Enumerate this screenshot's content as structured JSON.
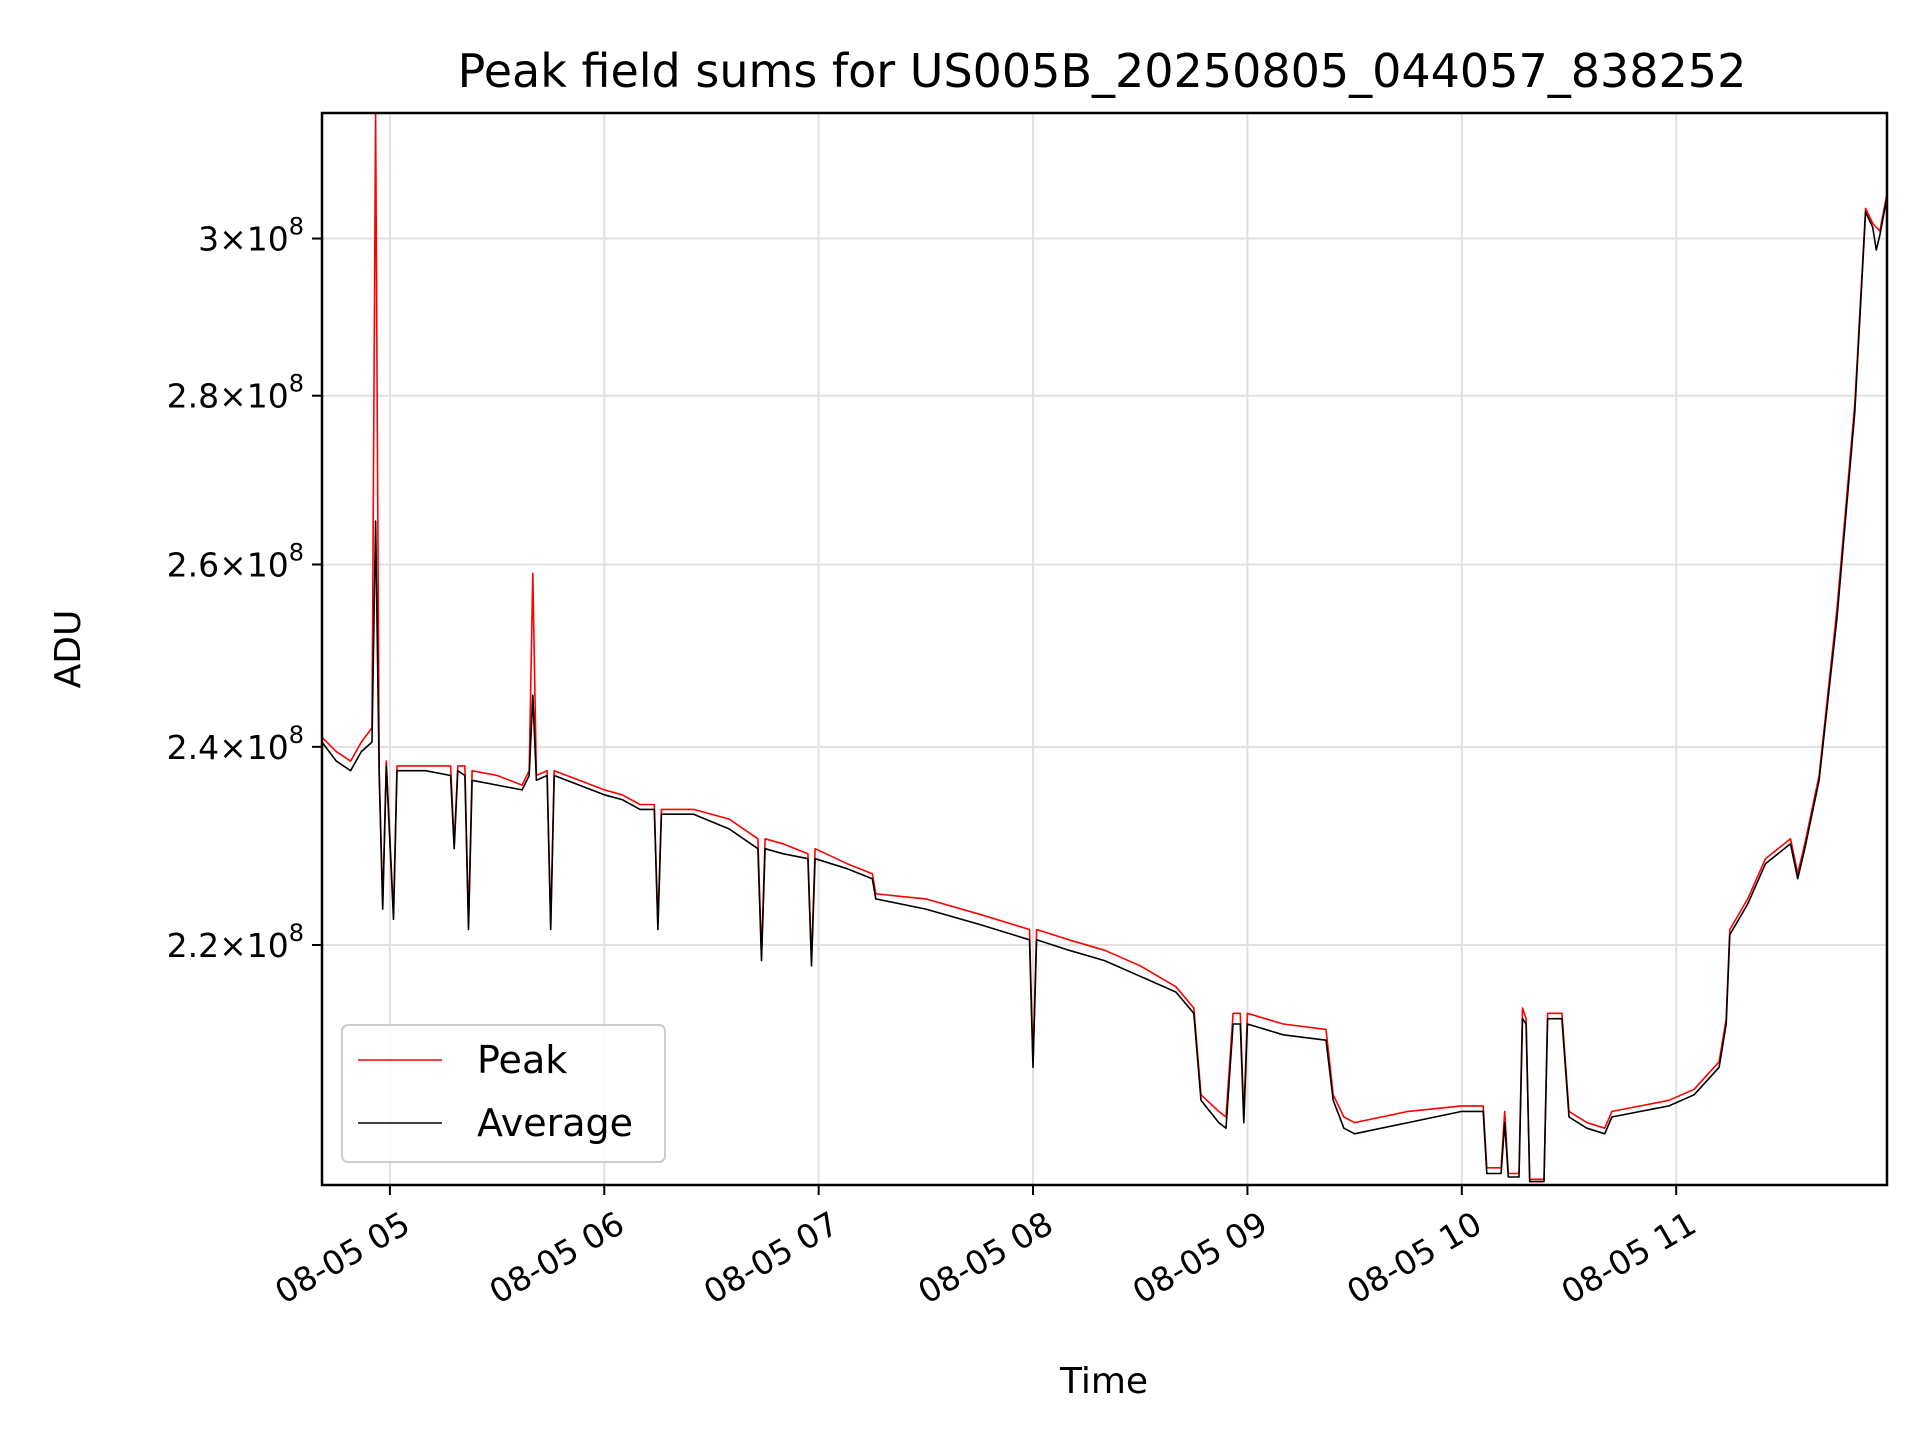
{
  "chart_data": {
    "type": "line",
    "title": "Peak field sums for US005B_20250805_044057_838252",
    "xlabel": "Time",
    "ylabel": "ADU",
    "y_scale": "log",
    "grid": true,
    "legend_position": "bottom-left",
    "xlim": [
      "2025-08-05 04:41",
      "2025-08-05 11:59"
    ],
    "ylim": [
      198000000,
      317000000
    ],
    "x_ticks": [
      {
        "value": "2025-08-05 05:00",
        "label": "08-05 05"
      },
      {
        "value": "2025-08-05 06:00",
        "label": "08-05 06"
      },
      {
        "value": "2025-08-05 07:00",
        "label": "08-05 07"
      },
      {
        "value": "2025-08-05 08:00",
        "label": "08-05 08"
      },
      {
        "value": "2025-08-05 09:00",
        "label": "08-05 09"
      },
      {
        "value": "2025-08-05 10:00",
        "label": "08-05 10"
      },
      {
        "value": "2025-08-05 11:00",
        "label": "08-05 11"
      }
    ],
    "y_ticks": [
      {
        "value": 220000000,
        "mantissa": "2.2",
        "exponent": "8"
      },
      {
        "value": 240000000,
        "mantissa": "2.4",
        "exponent": "8"
      },
      {
        "value": 260000000,
        "mantissa": "2.6",
        "exponent": "8"
      },
      {
        "value": 280000000,
        "mantissa": "2.8",
        "exponent": "8"
      },
      {
        "value": 300000000,
        "mantissa": "3",
        "exponent": "8"
      }
    ],
    "series": [
      {
        "name": "Peak",
        "color": "#ff0000",
        "points": [
          [
            "2025-08-05 04:41",
            241000000
          ],
          [
            "2025-08-05 04:45",
            239500000
          ],
          [
            "2025-08-05 04:49",
            238500000
          ],
          [
            "2025-08-05 04:52",
            240500000
          ],
          [
            "2025-08-05 04:55",
            242000000
          ],
          [
            "2025-08-05 04:56",
            317000000
          ],
          [
            "2025-08-05 04:57",
            237500000
          ],
          [
            "2025-08-05 04:58",
            224000000
          ],
          [
            "2025-08-05 04:59",
            238500000
          ],
          [
            "2025-08-05 05:01",
            223000000
          ],
          [
            "2025-08-05 05:02",
            238000000
          ],
          [
            "2025-08-05 05:10",
            238000000
          ],
          [
            "2025-08-05 05:17",
            238000000
          ],
          [
            "2025-08-05 05:18",
            230000000
          ],
          [
            "2025-08-05 05:19",
            238000000
          ],
          [
            "2025-08-05 05:21",
            238000000
          ],
          [
            "2025-08-05 05:22",
            222000000
          ],
          [
            "2025-08-05 05:23",
            237500000
          ],
          [
            "2025-08-05 05:30",
            237000000
          ],
          [
            "2025-08-05 05:37",
            236000000
          ],
          [
            "2025-08-05 05:39",
            237500000
          ],
          [
            "2025-08-05 05:40",
            259000000
          ],
          [
            "2025-08-05 05:41",
            237000000
          ],
          [
            "2025-08-05 05:44",
            237500000
          ],
          [
            "2025-08-05 05:45",
            222000000
          ],
          [
            "2025-08-05 05:46",
            237500000
          ],
          [
            "2025-08-05 05:53",
            236500000
          ],
          [
            "2025-08-05 06:00",
            235500000
          ],
          [
            "2025-08-05 06:05",
            235000000
          ],
          [
            "2025-08-05 06:10",
            234000000
          ],
          [
            "2025-08-05 06:14",
            234000000
          ],
          [
            "2025-08-05 06:15",
            222000000
          ],
          [
            "2025-08-05 06:16",
            233500000
          ],
          [
            "2025-08-05 06:25",
            233500000
          ],
          [
            "2025-08-05 06:35",
            232500000
          ],
          [
            "2025-08-05 06:43",
            230500000
          ],
          [
            "2025-08-05 06:44",
            219000000
          ],
          [
            "2025-08-05 06:45",
            230500000
          ],
          [
            "2025-08-05 06:50",
            230000000
          ],
          [
            "2025-08-05 06:57",
            229000000
          ],
          [
            "2025-08-05 06:58",
            218500000
          ],
          [
            "2025-08-05 06:59",
            229500000
          ],
          [
            "2025-08-05 07:08",
            228000000
          ],
          [
            "2025-08-05 07:15",
            227000000
          ],
          [
            "2025-08-05 07:16",
            225000000
          ],
          [
            "2025-08-05 07:30",
            224500000
          ],
          [
            "2025-08-05 07:45",
            223000000
          ],
          [
            "2025-08-05 07:59",
            221500000
          ],
          [
            "2025-08-05 08:00",
            209000000
          ],
          [
            "2025-08-05 08:01",
            221500000
          ],
          [
            "2025-08-05 08:10",
            220500000
          ],
          [
            "2025-08-05 08:20",
            219500000
          ],
          [
            "2025-08-05 08:30",
            218000000
          ],
          [
            "2025-08-05 08:40",
            216000000
          ],
          [
            "2025-08-05 08:45",
            214000000
          ],
          [
            "2025-08-05 08:47",
            206000000
          ],
          [
            "2025-08-05 08:52",
            204500000
          ],
          [
            "2025-08-05 08:54",
            204000000
          ],
          [
            "2025-08-05 08:56",
            213500000
          ],
          [
            "2025-08-05 08:58",
            213500000
          ],
          [
            "2025-08-05 08:59",
            204000000
          ],
          [
            "2025-08-05 09:00",
            213500000
          ],
          [
            "2025-08-05 09:10",
            212500000
          ],
          [
            "2025-08-05 09:22",
            212000000
          ],
          [
            "2025-08-05 09:24",
            206000000
          ],
          [
            "2025-08-05 09:27",
            204000000
          ],
          [
            "2025-08-05 09:30",
            203500000
          ],
          [
            "2025-08-05 09:45",
            204500000
          ],
          [
            "2025-08-05 10:00",
            205000000
          ],
          [
            "2025-08-05 10:06",
            205000000
          ],
          [
            "2025-08-05 10:07",
            199500000
          ],
          [
            "2025-08-05 10:11",
            199500000
          ],
          [
            "2025-08-05 10:12",
            204500000
          ],
          [
            "2025-08-05 10:13",
            199000000
          ],
          [
            "2025-08-05 10:16",
            199000000
          ],
          [
            "2025-08-05 10:17",
            214000000
          ],
          [
            "2025-08-05 10:18",
            213000000
          ],
          [
            "2025-08-05 10:19",
            198500000
          ],
          [
            "2025-08-05 10:23",
            198500000
          ],
          [
            "2025-08-05 10:24",
            213500000
          ],
          [
            "2025-08-05 10:28",
            213500000
          ],
          [
            "2025-08-05 10:30",
            204500000
          ],
          [
            "2025-08-05 10:35",
            203500000
          ],
          [
            "2025-08-05 10:40",
            203000000
          ],
          [
            "2025-08-05 10:42",
            204500000
          ],
          [
            "2025-08-05 10:50",
            205000000
          ],
          [
            "2025-08-05 10:58",
            205500000
          ],
          [
            "2025-08-05 11:05",
            206500000
          ],
          [
            "2025-08-05 11:12",
            209000000
          ],
          [
            "2025-08-05 11:14",
            213000000
          ],
          [
            "2025-08-05 11:15",
            221500000
          ],
          [
            "2025-08-05 11:20",
            224500000
          ],
          [
            "2025-08-05 11:25",
            228500000
          ],
          [
            "2025-08-05 11:32",
            230500000
          ],
          [
            "2025-08-05 11:34",
            227000000
          ],
          [
            "2025-08-05 11:36",
            230000000
          ],
          [
            "2025-08-05 11:40",
            237000000
          ],
          [
            "2025-08-05 11:45",
            255000000
          ],
          [
            "2025-08-05 11:50",
            279000000
          ],
          [
            "2025-08-05 11:53",
            304000000
          ],
          [
            "2025-08-05 11:55",
            302000000
          ],
          [
            "2025-08-05 11:57",
            301000000
          ],
          [
            "2025-08-05 11:59",
            306000000
          ]
        ]
      },
      {
        "name": "Average",
        "color": "#000000",
        "points": [
          [
            "2025-08-05 04:41",
            240500000
          ],
          [
            "2025-08-05 04:45",
            238500000
          ],
          [
            "2025-08-05 04:49",
            237500000
          ],
          [
            "2025-08-05 04:52",
            239500000
          ],
          [
            "2025-08-05 04:55",
            240500000
          ],
          [
            "2025-08-05 04:56",
            265000000
          ],
          [
            "2025-08-05 04:57",
            237000000
          ],
          [
            "2025-08-05 04:58",
            223500000
          ],
          [
            "2025-08-05 04:59",
            238000000
          ],
          [
            "2025-08-05 05:01",
            222500000
          ],
          [
            "2025-08-05 05:02",
            237500000
          ],
          [
            "2025-08-05 05:10",
            237500000
          ],
          [
            "2025-08-05 05:17",
            237000000
          ],
          [
            "2025-08-05 05:18",
            229500000
          ],
          [
            "2025-08-05 05:19",
            237500000
          ],
          [
            "2025-08-05 05:21",
            237000000
          ],
          [
            "2025-08-05 05:22",
            221500000
          ],
          [
            "2025-08-05 05:23",
            236500000
          ],
          [
            "2025-08-05 05:30",
            236000000
          ],
          [
            "2025-08-05 05:37",
            235500000
          ],
          [
            "2025-08-05 05:39",
            237000000
          ],
          [
            "2025-08-05 05:40",
            245500000
          ],
          [
            "2025-08-05 05:41",
            236500000
          ],
          [
            "2025-08-05 05:44",
            237000000
          ],
          [
            "2025-08-05 05:45",
            221500000
          ],
          [
            "2025-08-05 05:46",
            237000000
          ],
          [
            "2025-08-05 05:53",
            236000000
          ],
          [
            "2025-08-05 06:00",
            235000000
          ],
          [
            "2025-08-05 06:05",
            234500000
          ],
          [
            "2025-08-05 06:10",
            233500000
          ],
          [
            "2025-08-05 06:14",
            233500000
          ],
          [
            "2025-08-05 06:15",
            221500000
          ],
          [
            "2025-08-05 06:16",
            233000000
          ],
          [
            "2025-08-05 06:25",
            233000000
          ],
          [
            "2025-08-05 06:35",
            231500000
          ],
          [
            "2025-08-05 06:43",
            229500000
          ],
          [
            "2025-08-05 06:44",
            218500000
          ],
          [
            "2025-08-05 06:45",
            229500000
          ],
          [
            "2025-08-05 06:50",
            229000000
          ],
          [
            "2025-08-05 06:57",
            228500000
          ],
          [
            "2025-08-05 06:58",
            218000000
          ],
          [
            "2025-08-05 06:59",
            228500000
          ],
          [
            "2025-08-05 07:08",
            227500000
          ],
          [
            "2025-08-05 07:15",
            226500000
          ],
          [
            "2025-08-05 07:16",
            224500000
          ],
          [
            "2025-08-05 07:30",
            223500000
          ],
          [
            "2025-08-05 07:45",
            222000000
          ],
          [
            "2025-08-05 07:59",
            220500000
          ],
          [
            "2025-08-05 08:00",
            208500000
          ],
          [
            "2025-08-05 08:01",
            220500000
          ],
          [
            "2025-08-05 08:10",
            219500000
          ],
          [
            "2025-08-05 08:20",
            218500000
          ],
          [
            "2025-08-05 08:30",
            217000000
          ],
          [
            "2025-08-05 08:40",
            215500000
          ],
          [
            "2025-08-05 08:45",
            213500000
          ],
          [
            "2025-08-05 08:47",
            205500000
          ],
          [
            "2025-08-05 08:52",
            203500000
          ],
          [
            "2025-08-05 08:54",
            203000000
          ],
          [
            "2025-08-05 08:56",
            212500000
          ],
          [
            "2025-08-05 08:58",
            212500000
          ],
          [
            "2025-08-05 08:59",
            203500000
          ],
          [
            "2025-08-05 09:00",
            212500000
          ],
          [
            "2025-08-05 09:10",
            211500000
          ],
          [
            "2025-08-05 09:22",
            211000000
          ],
          [
            "2025-08-05 09:24",
            205500000
          ],
          [
            "2025-08-05 09:27",
            203000000
          ],
          [
            "2025-08-05 09:30",
            202500000
          ],
          [
            "2025-08-05 09:45",
            203500000
          ],
          [
            "2025-08-05 10:00",
            204500000
          ],
          [
            "2025-08-05 10:06",
            204500000
          ],
          [
            "2025-08-05 10:07",
            199000000
          ],
          [
            "2025-08-05 10:11",
            199000000
          ],
          [
            "2025-08-05 10:12",
            203500000
          ],
          [
            "2025-08-05 10:13",
            198700000
          ],
          [
            "2025-08-05 10:16",
            198700000
          ],
          [
            "2025-08-05 10:17",
            213000000
          ],
          [
            "2025-08-05 10:18",
            212500000
          ],
          [
            "2025-08-05 10:19",
            198300000
          ],
          [
            "2025-08-05 10:23",
            198300000
          ],
          [
            "2025-08-05 10:24",
            213000000
          ],
          [
            "2025-08-05 10:28",
            213000000
          ],
          [
            "2025-08-05 10:30",
            204000000
          ],
          [
            "2025-08-05 10:35",
            203000000
          ],
          [
            "2025-08-05 10:40",
            202500000
          ],
          [
            "2025-08-05 10:42",
            204000000
          ],
          [
            "2025-08-05 10:50",
            204500000
          ],
          [
            "2025-08-05 10:58",
            205000000
          ],
          [
            "2025-08-05 11:05",
            206000000
          ],
          [
            "2025-08-05 11:12",
            208500000
          ],
          [
            "2025-08-05 11:14",
            212500000
          ],
          [
            "2025-08-05 11:15",
            221000000
          ],
          [
            "2025-08-05 11:20",
            224000000
          ],
          [
            "2025-08-05 11:25",
            228000000
          ],
          [
            "2025-08-05 11:32",
            230000000
          ],
          [
            "2025-08-05 11:34",
            226500000
          ],
          [
            "2025-08-05 11:36",
            229500000
          ],
          [
            "2025-08-05 11:40",
            236500000
          ],
          [
            "2025-08-05 11:45",
            254000000
          ],
          [
            "2025-08-05 11:50",
            278000000
          ],
          [
            "2025-08-05 11:53",
            303500000
          ],
          [
            "2025-08-05 11:55",
            301500000
          ],
          [
            "2025-08-05 11:56",
            298500000
          ],
          [
            "2025-08-05 11:57",
            300500000
          ],
          [
            "2025-08-05 11:59",
            305500000
          ]
        ]
      }
    ]
  }
}
